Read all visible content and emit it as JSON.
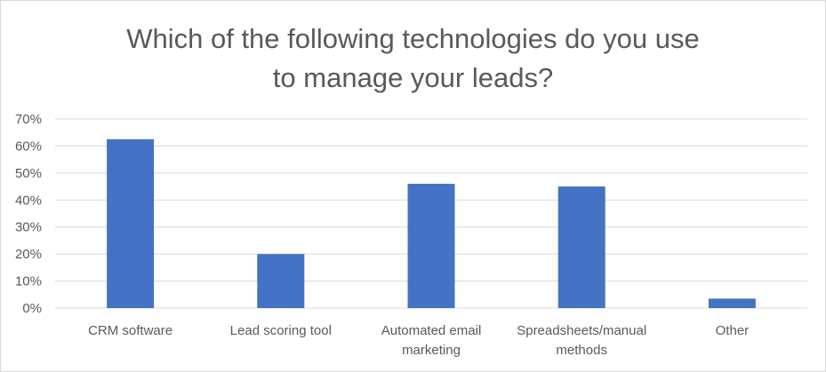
{
  "chart_data": {
    "type": "bar",
    "title_lines": [
      "Which of the following technologies do you use",
      "to manage your leads?"
    ],
    "categories": [
      [
        "CRM software"
      ],
      [
        "Lead scoring tool"
      ],
      [
        "Automated email",
        "marketing"
      ],
      [
        "Spreadsheets/manual",
        "methods"
      ],
      [
        "Other"
      ]
    ],
    "values": [
      62.5,
      20,
      46,
      45,
      3.5
    ],
    "ylim": [
      0,
      70
    ],
    "ytick_labels": [
      "0%",
      "10%",
      "20%",
      "30%",
      "40%",
      "50%",
      "60%",
      "70%"
    ],
    "grid": true,
    "bar_color": "#4472c4",
    "grid_color": "#d9d9d9"
  }
}
